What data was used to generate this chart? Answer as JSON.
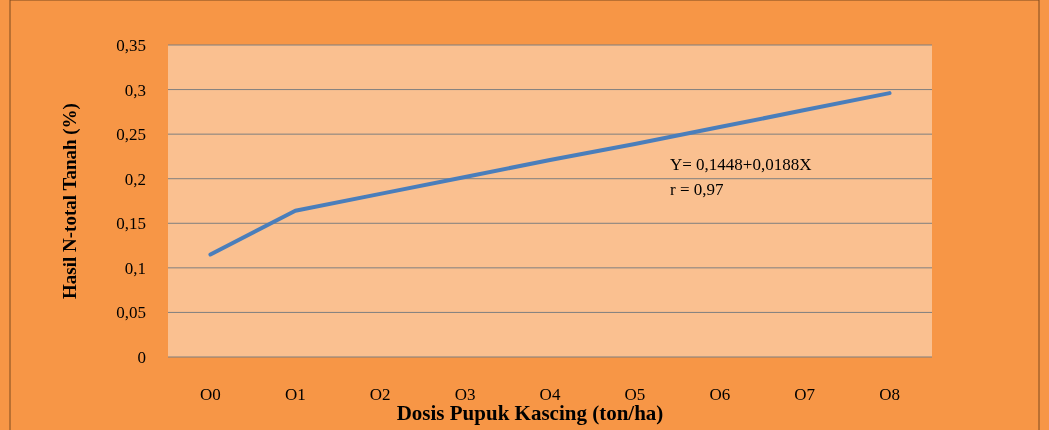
{
  "chart_data": {
    "type": "line",
    "xlabel": "Dosis Pupuk Kascing (ton/ha)",
    "ylabel": "Hasil  N-total Tanah (%)",
    "categories": [
      "O0",
      "O1",
      "O2",
      "O3",
      "O4",
      "O5",
      "O6",
      "O7",
      "O8"
    ],
    "series": [
      {
        "color": "#4a7ebb",
        "values": [
          0.115,
          0.164,
          0.183,
          0.202,
          0.221,
          0.239,
          0.258,
          0.277,
          0.296
        ]
      }
    ],
    "ylim": [
      0,
      0.35
    ],
    "yticks": [
      {
        "value": 0,
        "label": "0"
      },
      {
        "value": 0.05,
        "label": "0,05"
      },
      {
        "value": 0.1,
        "label": "0,1"
      },
      {
        "value": 0.15,
        "label": "0,15"
      },
      {
        "value": 0.2,
        "label": "0,2"
      },
      {
        "value": 0.25,
        "label": "0,25"
      },
      {
        "value": 0.3,
        "label": "0,3"
      },
      {
        "value": 0.35,
        "label": "0,35"
      }
    ],
    "grid": "y",
    "marker": "none",
    "line_style": "solid",
    "annotations": [
      "Y= 0,1448+0,0188X",
      "r = 0,97"
    ]
  }
}
